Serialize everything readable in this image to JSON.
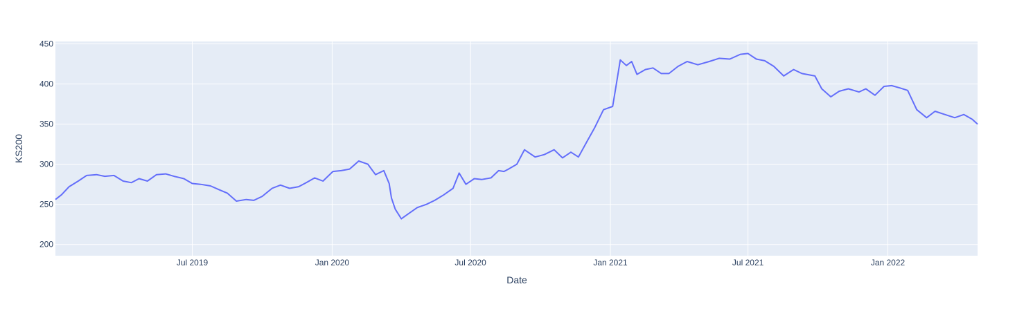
{
  "chart_data": {
    "type": "line",
    "title": "",
    "xlabel": "Date",
    "ylabel": "KS200",
    "x_range": [
      "2019-01-02",
      "2022-04-29"
    ],
    "ylim": [
      186,
      453
    ],
    "x_ticks": [
      {
        "date": "2019-07-01",
        "label": "Jul 2019"
      },
      {
        "date": "2020-01-01",
        "label": "Jan 2020"
      },
      {
        "date": "2020-07-01",
        "label": "Jul 2020"
      },
      {
        "date": "2021-01-01",
        "label": "Jan 2021"
      },
      {
        "date": "2021-07-01",
        "label": "Jul 2021"
      },
      {
        "date": "2022-01-01",
        "label": "Jan 2022"
      }
    ],
    "y_ticks": [
      200,
      250,
      300,
      350,
      400,
      450
    ],
    "grid": true,
    "colors": {
      "plot_bg": "#e5ecf6",
      "grid": "#ffffff",
      "line": "#636efa",
      "text": "#2a3f5f"
    },
    "series": [
      {
        "x": [
          "2019-01-02",
          "2019-01-10",
          "2019-01-20",
          "2019-02-01",
          "2019-02-12",
          "2019-02-25",
          "2019-03-08",
          "2019-03-20",
          "2019-04-01",
          "2019-04-12",
          "2019-04-22",
          "2019-05-03",
          "2019-05-15",
          "2019-05-27",
          "2019-06-07",
          "2019-06-20",
          "2019-07-01",
          "2019-07-12",
          "2019-07-25",
          "2019-08-06",
          "2019-08-16",
          "2019-08-28",
          "2019-09-10",
          "2019-09-20",
          "2019-10-01",
          "2019-10-14",
          "2019-10-25",
          "2019-11-06",
          "2019-11-18",
          "2019-11-28",
          "2019-12-09",
          "2019-12-20",
          "2020-01-02",
          "2020-01-13",
          "2020-01-24",
          "2020-02-05",
          "2020-02-17",
          "2020-02-27",
          "2020-03-09",
          "2020-03-16",
          "2020-03-19",
          "2020-03-24",
          "2020-04-01",
          "2020-04-10",
          "2020-04-22",
          "2020-05-04",
          "2020-05-15",
          "2020-05-27",
          "2020-06-08",
          "2020-06-16",
          "2020-06-25",
          "2020-07-06",
          "2020-07-16",
          "2020-07-28",
          "2020-08-07",
          "2020-08-14",
          "2020-08-20",
          "2020-08-31",
          "2020-09-10",
          "2020-09-24",
          "2020-10-06",
          "2020-10-19",
          "2020-10-30",
          "2020-11-10",
          "2020-11-20",
          "2020-12-01",
          "2020-12-11",
          "2020-12-23",
          "2021-01-04",
          "2021-01-08",
          "2021-01-14",
          "2021-01-22",
          "2021-01-29",
          "2021-02-05",
          "2021-02-16",
          "2021-02-26",
          "2021-03-09",
          "2021-03-19",
          "2021-03-31",
          "2021-04-12",
          "2021-04-26",
          "2021-05-11",
          "2021-05-24",
          "2021-06-07",
          "2021-06-21",
          "2021-07-01",
          "2021-07-12",
          "2021-07-23",
          "2021-08-04",
          "2021-08-17",
          "2021-08-30",
          "2021-09-10",
          "2021-09-27",
          "2021-10-06",
          "2021-10-18",
          "2021-10-29",
          "2021-11-10",
          "2021-11-24",
          "2021-12-03",
          "2021-12-15",
          "2021-12-27",
          "2022-01-06",
          "2022-01-17",
          "2022-01-27",
          "2022-02-08",
          "2022-02-21",
          "2022-03-04",
          "2022-03-17",
          "2022-03-30",
          "2022-04-11",
          "2022-04-22",
          "2022-04-29"
        ],
        "y": [
          256,
          262,
          272,
          279,
          286,
          287,
          285,
          286,
          279,
          277,
          282,
          279,
          287,
          288,
          285,
          282,
          276,
          275,
          273,
          268,
          264,
          254,
          256,
          255,
          260,
          270,
          274,
          270,
          272,
          277,
          283,
          279,
          291,
          292,
          294,
          304,
          300,
          287,
          292,
          276,
          258,
          244,
          232,
          238,
          246,
          250,
          255,
          262,
          270,
          289,
          275,
          282,
          281,
          283,
          292,
          291,
          294,
          300,
          318,
          309,
          312,
          318,
          308,
          315,
          309,
          328,
          345,
          368,
          372,
          395,
          430,
          423,
          428,
          412,
          418,
          420,
          413,
          413,
          422,
          428,
          424,
          428,
          432,
          431,
          437,
          438,
          431,
          429,
          422,
          410,
          418,
          413,
          410,
          394,
          384,
          391,
          394,
          390,
          394,
          386,
          397,
          398,
          395,
          392,
          368,
          358,
          366,
          362,
          358,
          362,
          356,
          350
        ]
      }
    ]
  }
}
